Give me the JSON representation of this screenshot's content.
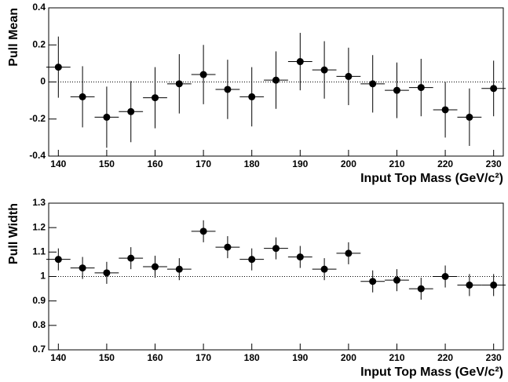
{
  "chart_data": [
    {
      "type": "errorbar",
      "ylabel": "Pull Mean",
      "xlabel": "Input Top Mass (GeV/c²)",
      "x": [
        140,
        145,
        150,
        155,
        160,
        165,
        170,
        175,
        180,
        185,
        190,
        195,
        200,
        205,
        210,
        215,
        220,
        225,
        230
      ],
      "values": [
        0.08,
        -0.08,
        -0.19,
        -0.16,
        -0.085,
        -0.01,
        0.04,
        -0.04,
        -0.08,
        0.01,
        0.11,
        0.065,
        0.03,
        -0.01,
        -0.045,
        -0.03,
        -0.15,
        -0.19,
        -0.035
      ],
      "errors": [
        0.165,
        0.165,
        0.165,
        0.165,
        0.165,
        0.16,
        0.16,
        0.16,
        0.16,
        0.155,
        0.155,
        0.155,
        0.155,
        0.155,
        0.15,
        0.155,
        0.15,
        0.155,
        0.15
      ],
      "xerr": 2.5,
      "color": "#000000",
      "xlim": [
        138,
        232
      ],
      "ylim": [
        -0.4,
        0.4
      ],
      "xticks": [
        140,
        150,
        160,
        170,
        180,
        190,
        200,
        210,
        220,
        230
      ],
      "yticks": [
        -0.4,
        -0.2,
        0,
        0.2,
        0.4
      ],
      "hline": 0
    },
    {
      "type": "errorbar",
      "ylabel": "Pull Width",
      "xlabel": "Input Top Mass (GeV/c²)",
      "x": [
        140,
        145,
        150,
        155,
        160,
        165,
        170,
        175,
        180,
        185,
        190,
        195,
        200,
        205,
        210,
        215,
        220,
        225,
        230
      ],
      "values": [
        1.07,
        1.035,
        1.015,
        1.075,
        1.04,
        1.03,
        1.185,
        1.12,
        1.07,
        1.115,
        1.08,
        1.03,
        1.095,
        0.98,
        0.985,
        0.95,
        1.0,
        0.965,
        0.965
      ],
      "errors": [
        0.045,
        0.045,
        0.045,
        0.045,
        0.045,
        0.045,
        0.045,
        0.045,
        0.045,
        0.045,
        0.045,
        0.045,
        0.045,
        0.045,
        0.045,
        0.045,
        0.045,
        0.045,
        0.045
      ],
      "xerr": 2.5,
      "color": "#000000",
      "xlim": [
        138,
        232
      ],
      "ylim": [
        0.7,
        1.3
      ],
      "xticks": [
        140,
        150,
        160,
        170,
        180,
        190,
        200,
        210,
        220,
        230
      ],
      "yticks": [
        0.7,
        0.8,
        0.9,
        1,
        1.1,
        1.2,
        1.3
      ],
      "hline": 1
    }
  ]
}
